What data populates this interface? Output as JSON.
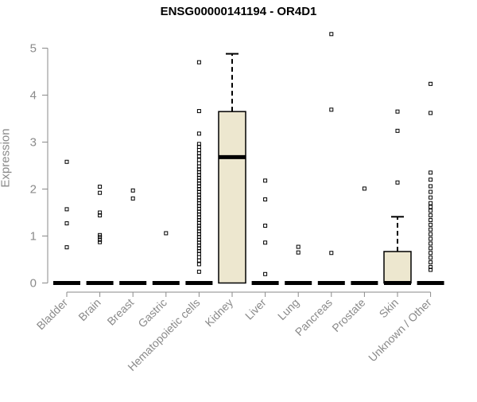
{
  "chart_data": {
    "type": "boxplot",
    "title": "ENSG00000141194 - OR4D1",
    "xlabel": "",
    "ylabel": "Expression",
    "ylim": [
      0,
      5.3
    ],
    "yticks": [
      0,
      1,
      2,
      3,
      4,
      5
    ],
    "grid": false,
    "box_fill": "#ede7cf",
    "categories": [
      "Bladder",
      "Brain",
      "Breast",
      "Gastric",
      "Hematopoietic cells",
      "Kidney",
      "Liver",
      "Lung",
      "Pancreas",
      "Prostate",
      "Skin",
      "Unknown / Other"
    ],
    "groups": [
      {
        "name": "Bladder",
        "q1": 0,
        "median": 0,
        "q3": 0,
        "whisker_low": 0,
        "whisker_high": 0,
        "outliers": [
          2.58,
          1.57,
          1.27,
          0.76
        ]
      },
      {
        "name": "Brain",
        "q1": 0,
        "median": 0,
        "q3": 0,
        "whisker_low": 0,
        "whisker_high": 0,
        "outliers": [
          2.05,
          1.92,
          1.5,
          1.44,
          1.02,
          0.98,
          0.92,
          0.87
        ]
      },
      {
        "name": "Breast",
        "q1": 0,
        "median": 0,
        "q3": 0,
        "whisker_low": 0,
        "whisker_high": 0,
        "outliers": [
          1.97,
          1.8
        ]
      },
      {
        "name": "Gastric",
        "q1": 0,
        "median": 0,
        "q3": 0,
        "whisker_low": 0,
        "whisker_high": 0,
        "outliers": [
          1.06
        ]
      },
      {
        "name": "Hematopoietic cells",
        "q1": 0,
        "median": 0,
        "q3": 0,
        "whisker_low": 0,
        "whisker_high": 0,
        "outliers": [
          4.7,
          3.66,
          3.18,
          2.96,
          2.9,
          2.83,
          2.76,
          2.7,
          2.62,
          2.55,
          2.48,
          2.42,
          2.36,
          2.3,
          2.24,
          2.18,
          2.12,
          2.06,
          2.0,
          1.94,
          1.88,
          1.82,
          1.76,
          1.7,
          1.64,
          1.58,
          1.52,
          1.46,
          1.4,
          1.34,
          1.28,
          1.22,
          1.16,
          1.1,
          1.04,
          0.98,
          0.92,
          0.86,
          0.8,
          0.74,
          0.68,
          0.62,
          0.55,
          0.48,
          0.4,
          0.24
        ]
      },
      {
        "name": "Kidney",
        "q1": 0,
        "median": 2.68,
        "q3": 3.65,
        "whisker_low": 0,
        "whisker_high": 4.88,
        "outliers": []
      },
      {
        "name": "Liver",
        "q1": 0,
        "median": 0,
        "q3": 0,
        "whisker_low": 0,
        "whisker_high": 0,
        "outliers": [
          2.18,
          1.78,
          1.22,
          0.86,
          0.19
        ]
      },
      {
        "name": "Lung",
        "q1": 0,
        "median": 0,
        "q3": 0,
        "whisker_low": 0,
        "whisker_high": 0,
        "outliers": [
          0.77,
          0.65
        ]
      },
      {
        "name": "Pancreas",
        "q1": 0,
        "median": 0,
        "q3": 0,
        "whisker_low": 0,
        "whisker_high": 0,
        "outliers": [
          5.3,
          3.69,
          0.64
        ]
      },
      {
        "name": "Prostate",
        "q1": 0,
        "median": 0,
        "q3": 0,
        "whisker_low": 0,
        "whisker_high": 0,
        "outliers": [
          2.01
        ]
      },
      {
        "name": "Skin",
        "q1": 0,
        "median": 0,
        "q3": 0.67,
        "whisker_low": 0,
        "whisker_high": 1.41,
        "outliers": [
          3.65,
          3.24,
          2.14
        ]
      },
      {
        "name": "Unknown / Other",
        "q1": 0,
        "median": 0,
        "q3": 0,
        "whisker_low": 0,
        "whisker_high": 0,
        "outliers": [
          4.24,
          3.62,
          2.35,
          2.2,
          2.06,
          1.94,
          1.82,
          1.7,
          1.62,
          1.54,
          1.44,
          1.34,
          1.24,
          1.14,
          1.04,
          0.94,
          0.84,
          0.74,
          0.64,
          0.54,
          0.44,
          0.34,
          0.28
        ]
      }
    ]
  }
}
